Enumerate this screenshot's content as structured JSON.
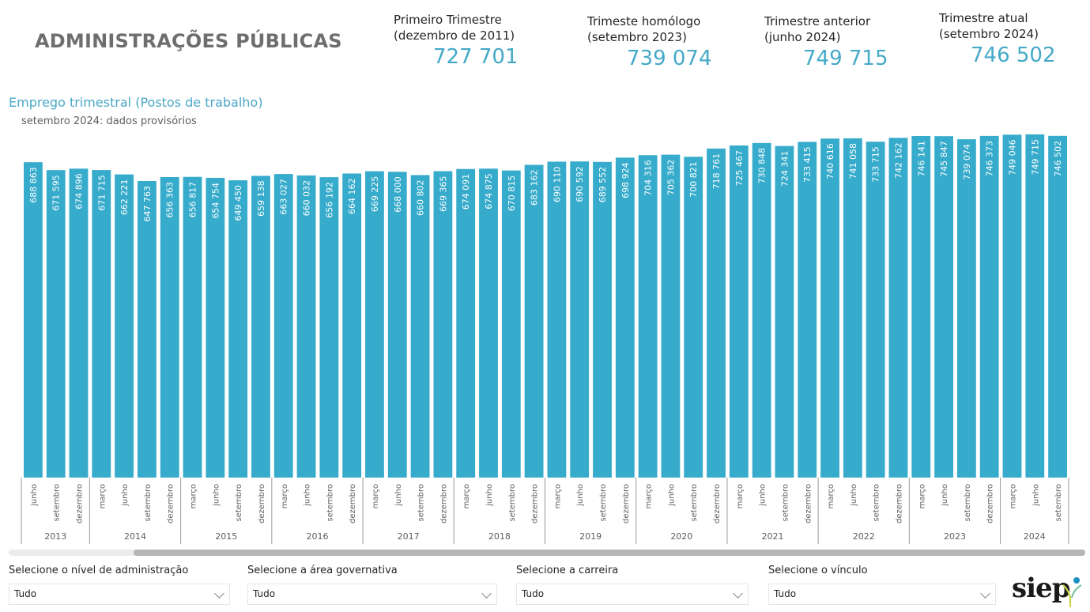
{
  "header": {
    "title": "ADMINISTRAÇÕES PÚBLICAS"
  },
  "kpis": [
    {
      "label_line1": "Primeiro Trimestre",
      "label_line2": "(dezembro de 2011)",
      "value": "727 701"
    },
    {
      "label_line1": "Trimeste homólogo",
      "label_line2": "(setembro 2023)",
      "value": "739 074"
    },
    {
      "label_line1": "Trimestre anterior",
      "label_line2": "(junho 2024)",
      "value": "749 715"
    },
    {
      "label_line1": "Trimestre atual",
      "label_line2": "(setembro 2024)",
      "value": "746 502"
    }
  ],
  "colors": {
    "accent": "#36abcb",
    "kpi_value": "#45a9c8",
    "title": "#6e6e6e"
  },
  "chart_data": {
    "type": "bar",
    "title": "Emprego trimestral (Postos de trabalho)",
    "subtitle": "setembro 2024: dados provisórios",
    "xlabel": "",
    "ylabel": "",
    "ylim": [
      0,
      760000
    ],
    "grid": false,
    "legend": "none",
    "categories": [
      {
        "year": "2013",
        "month": "junho"
      },
      {
        "year": "2013",
        "month": "setembro"
      },
      {
        "year": "2013",
        "month": "dezembro"
      },
      {
        "year": "2014",
        "month": "março"
      },
      {
        "year": "2014",
        "month": "junho"
      },
      {
        "year": "2014",
        "month": "setembro"
      },
      {
        "year": "2014",
        "month": "dezembro"
      },
      {
        "year": "2015",
        "month": "março"
      },
      {
        "year": "2015",
        "month": "junho"
      },
      {
        "year": "2015",
        "month": "setembro"
      },
      {
        "year": "2015",
        "month": "dezembro"
      },
      {
        "year": "2016",
        "month": "março"
      },
      {
        "year": "2016",
        "month": "junho"
      },
      {
        "year": "2016",
        "month": "setembro"
      },
      {
        "year": "2016",
        "month": "dezembro"
      },
      {
        "year": "2017",
        "month": "março"
      },
      {
        "year": "2017",
        "month": "junho"
      },
      {
        "year": "2017",
        "month": "setembro"
      },
      {
        "year": "2017",
        "month": "dezembro"
      },
      {
        "year": "2018",
        "month": "março"
      },
      {
        "year": "2018",
        "month": "junho"
      },
      {
        "year": "2018",
        "month": "setembro"
      },
      {
        "year": "2018",
        "month": "dezembro"
      },
      {
        "year": "2019",
        "month": "março"
      },
      {
        "year": "2019",
        "month": "junho"
      },
      {
        "year": "2019",
        "month": "setembro"
      },
      {
        "year": "2019",
        "month": "dezembro"
      },
      {
        "year": "2020",
        "month": "março"
      },
      {
        "year": "2020",
        "month": "junho"
      },
      {
        "year": "2020",
        "month": "setembro"
      },
      {
        "year": "2020",
        "month": "dezembro"
      },
      {
        "year": "2021",
        "month": "março"
      },
      {
        "year": "2021",
        "month": "junho"
      },
      {
        "year": "2021",
        "month": "setembro"
      },
      {
        "year": "2021",
        "month": "dezembro"
      },
      {
        "year": "2022",
        "month": "março"
      },
      {
        "year": "2022",
        "month": "junho"
      },
      {
        "year": "2022",
        "month": "setembro"
      },
      {
        "year": "2022",
        "month": "dezembro"
      },
      {
        "year": "2023",
        "month": "março"
      },
      {
        "year": "2023",
        "month": "junho"
      },
      {
        "year": "2023",
        "month": "setembro"
      },
      {
        "year": "2023",
        "month": "dezembro"
      },
      {
        "year": "2024",
        "month": "março"
      },
      {
        "year": "2024",
        "month": "junho"
      },
      {
        "year": "2024",
        "month": "setembro"
      }
    ],
    "values": [
      688863,
      671595,
      674896,
      671715,
      662221,
      647763,
      656363,
      656817,
      654754,
      649450,
      659138,
      663027,
      660032,
      656192,
      664162,
      669225,
      668000,
      660802,
      669365,
      674091,
      674875,
      670815,
      683162,
      690110,
      690592,
      689552,
      698924,
      704316,
      705362,
      700821,
      718761,
      725467,
      730848,
      724341,
      733415,
      740616,
      741058,
      733715,
      742162,
      746141,
      745847,
      739074,
      746373,
      749046,
      749715,
      746502
    ],
    "value_labels": [
      "688 863",
      "671 595",
      "674 896",
      "671 715",
      "662 221",
      "647 763",
      "656 363",
      "656 817",
      "654 754",
      "649 450",
      "659 138",
      "663 027",
      "660 032",
      "656 192",
      "664 162",
      "669 225",
      "668 000",
      "660 802",
      "669 365",
      "674 091",
      "674 875",
      "670 815",
      "683 162",
      "690 110",
      "690 592",
      "689 552",
      "698 924",
      "704 316",
      "705 362",
      "700 821",
      "718 761",
      "725 467",
      "730 848",
      "724 341",
      "733 415",
      "740 616",
      "741 058",
      "733 715",
      "742 162",
      "746 141",
      "745 847",
      "739 074",
      "746 373",
      "749 046",
      "749 715",
      "746 502"
    ]
  },
  "filters": [
    {
      "label": "Selecione o nível de administração",
      "value": "Tudo"
    },
    {
      "label": "Selecione a área governativa",
      "value": "Tudo"
    },
    {
      "label": "Selecione a carreira",
      "value": "Tudo"
    },
    {
      "label": "Selecione o vínculo",
      "value": "Tudo"
    }
  ],
  "logo": {
    "text": "siep"
  }
}
